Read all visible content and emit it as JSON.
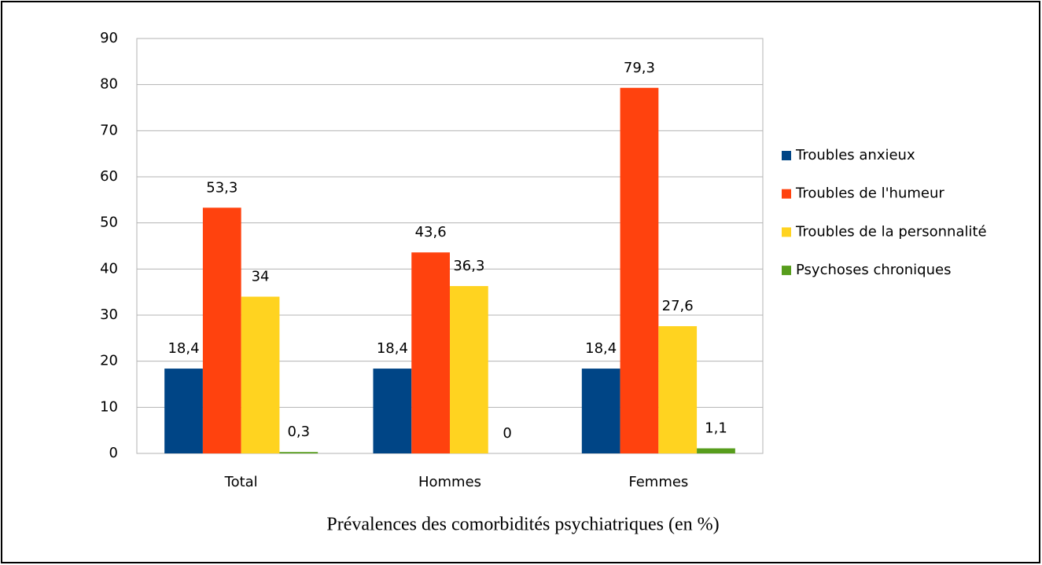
{
  "chart_data": {
    "type": "bar",
    "title": "Prévalences des comorbidités psychiatriques (en %)",
    "categories": [
      "Total",
      "Hommes",
      "Femmes"
    ],
    "series": [
      {
        "name": "Troubles anxieux",
        "color": "#004586",
        "values": [
          18.4,
          18.4,
          18.4
        ],
        "value_labels": [
          "18,4",
          "18,4",
          "18,4"
        ]
      },
      {
        "name": "Troubles de l'humeur",
        "color": "#ff420e",
        "values": [
          53.3,
          43.6,
          79.3
        ],
        "value_labels": [
          "53,3",
          "43,6",
          "79,3"
        ]
      },
      {
        "name": "Troubles de la personnalité",
        "color": "#ffd320",
        "values": [
          34,
          36.3,
          27.6
        ],
        "value_labels": [
          "34",
          "36,3",
          "27,6"
        ]
      },
      {
        "name": "Psychoses chroniques",
        "color": "#579d1c",
        "values": [
          0.3,
          0,
          1.1
        ],
        "value_labels": [
          "0,3",
          "0",
          "1,1"
        ]
      }
    ],
    "ylim": [
      0,
      90
    ],
    "yticks": [
      0,
      10,
      20,
      30,
      40,
      50,
      60,
      70,
      80,
      90
    ],
    "grid": true,
    "legend": "right"
  }
}
